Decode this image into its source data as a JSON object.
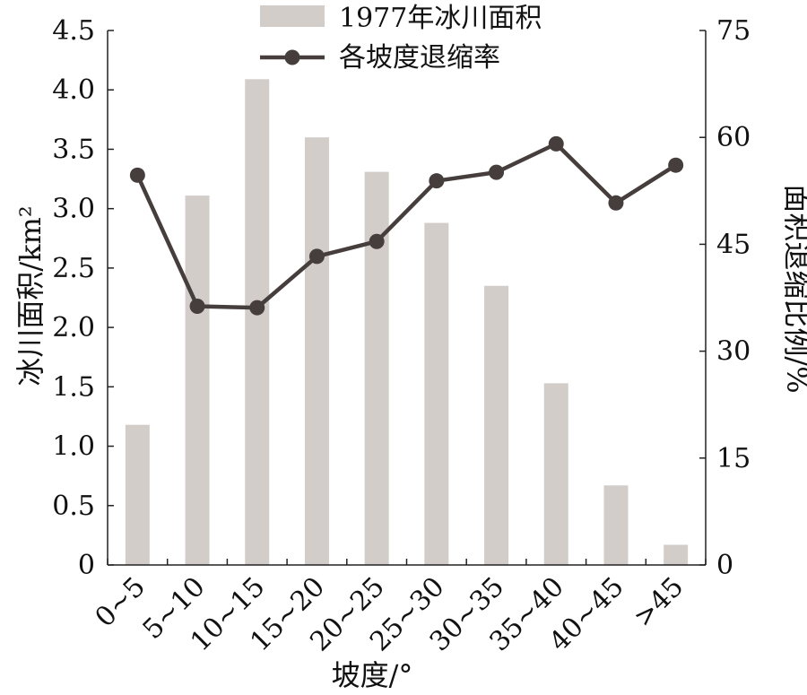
{
  "chart_data": {
    "type": "bar",
    "categories": [
      "0~5",
      "5~10",
      "10~15",
      "15~20",
      "20~25",
      "25~30",
      "30~35",
      "35~40",
      "40~45",
      ">45"
    ],
    "series": [
      {
        "name": "1977年冰川面积",
        "type": "bar",
        "axis": "left",
        "color": "#d3cdca",
        "values": [
          1.18,
          3.11,
          4.09,
          3.6,
          3.31,
          2.88,
          2.35,
          1.53,
          0.67,
          0.17
        ]
      },
      {
        "name": "各坡度退缩率",
        "type": "line",
        "axis": "right",
        "color": "#463e3c",
        "values": [
          54.7,
          36.3,
          36.1,
          43.3,
          45.4,
          53.9,
          55.1,
          59.1,
          50.8,
          56.1
        ]
      }
    ],
    "xlabel": "坡度/°",
    "ylabel_left": "冰川面积/km²",
    "ylabel_right": "面积退缩比例/%",
    "ylim_left": [
      0,
      4.5
    ],
    "ylim_right": [
      0,
      75
    ],
    "yticks_left": [
      "0",
      "0.5",
      "1.0",
      "1.5",
      "2.0",
      "2.5",
      "3.0",
      "3.5",
      "4.0",
      "4.5"
    ],
    "yticks_right": [
      "0",
      "15",
      "30",
      "45",
      "60",
      "75"
    ],
    "grid": false,
    "legend_position": "top-center"
  }
}
